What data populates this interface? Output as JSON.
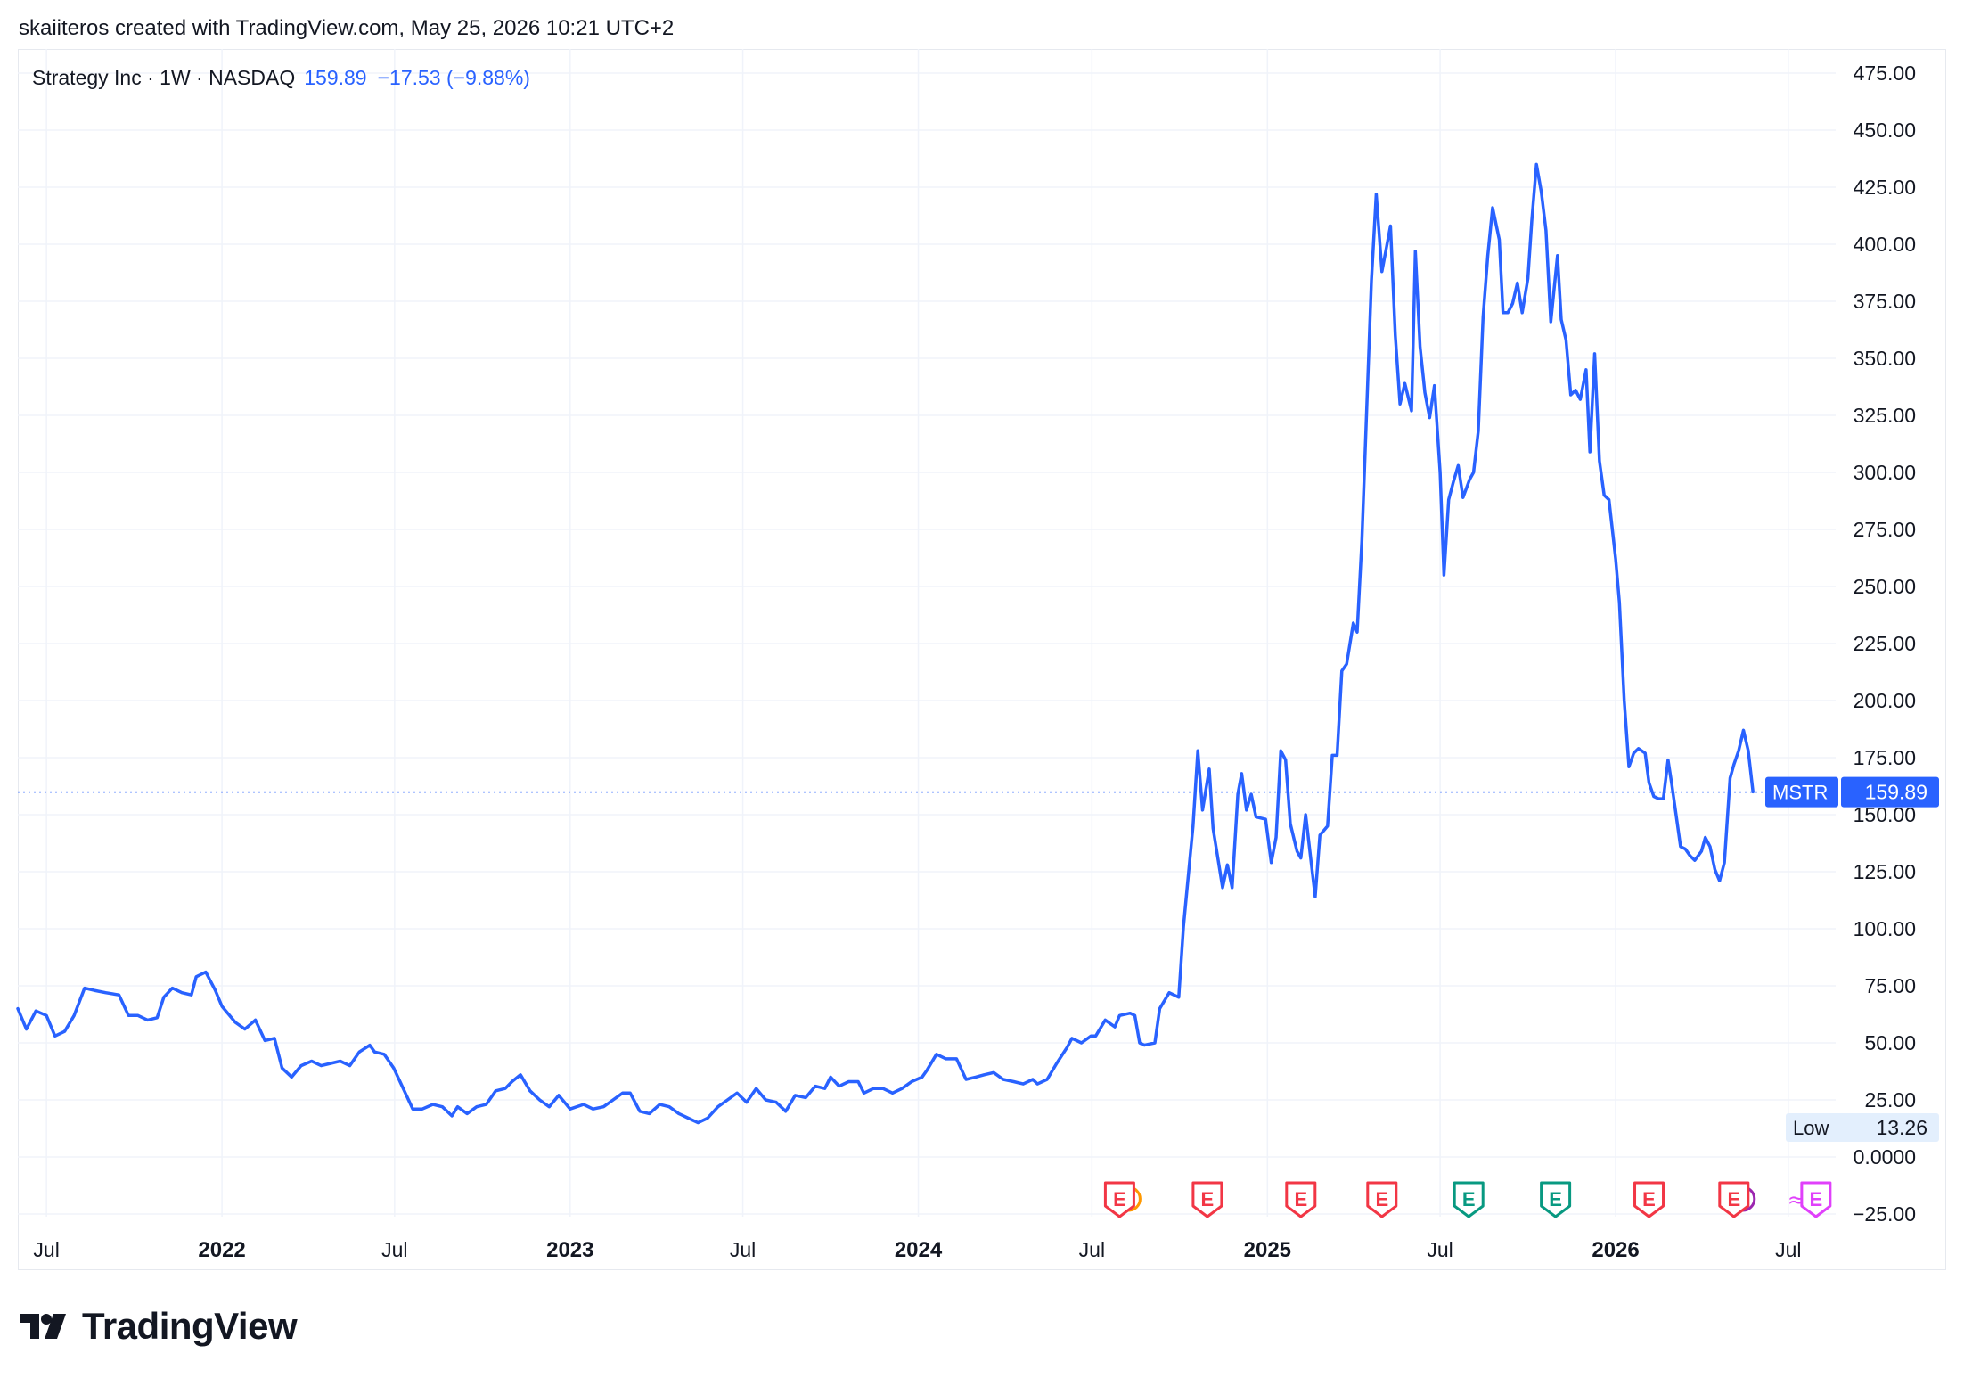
{
  "header": {
    "attribution": "skaiiteros created with TradingView.com, May 25, 2026 10:21 UTC+2"
  },
  "legend": {
    "symbol_text": "Strategy Inc · 1W · NASDAQ",
    "last_price": "159.89",
    "change": "−17.53 (−9.88%)"
  },
  "price_tag": {
    "ticker": "MSTR",
    "value": "159.89"
  },
  "low_tag": {
    "label": "Low",
    "value": "13.26"
  },
  "brand": {
    "name": "TradingView"
  },
  "colors": {
    "line": "#2962ff",
    "grid": "#f0f3fa",
    "earnings_red": "#f23645",
    "earnings_green": "#089981",
    "dividend_orange": "#ff9800",
    "split_magenta": "#e040fb"
  },
  "chart_data": {
    "type": "line",
    "title": "Strategy Inc · 1W · NASDAQ",
    "xlabel": "",
    "ylabel": "",
    "ylim": [
      -25,
      475
    ],
    "y_ticks": [
      "475.00",
      "450.00",
      "425.00",
      "400.00",
      "375.00",
      "350.00",
      "325.00",
      "300.00",
      "275.00",
      "250.00",
      "225.00",
      "200.00",
      "175.00",
      "150.00",
      "125.00",
      "100.00",
      "75.00",
      "50.00",
      "25.00",
      "0.0000",
      "−25.00"
    ],
    "x_ticks": [
      {
        "label": "Jul",
        "date": "2021-07-01",
        "bold": false
      },
      {
        "label": "2022",
        "date": "2022-01-01",
        "bold": true
      },
      {
        "label": "Jul",
        "date": "2022-07-01",
        "bold": false
      },
      {
        "label": "2023",
        "date": "2023-01-01",
        "bold": true
      },
      {
        "label": "Jul",
        "date": "2023-07-01",
        "bold": false
      },
      {
        "label": "2024",
        "date": "2024-01-01",
        "bold": true
      },
      {
        "label": "Jul",
        "date": "2024-07-01",
        "bold": false
      },
      {
        "label": "2025",
        "date": "2025-01-01",
        "bold": true
      },
      {
        "label": "Jul",
        "date": "2025-07-01",
        "bold": false
      },
      {
        "label": "2026",
        "date": "2026-01-01",
        "bold": true
      },
      {
        "label": "Jul",
        "date": "2026-07-01",
        "bold": false
      }
    ],
    "x_range": [
      "2021-06-01",
      "2026-08-01"
    ],
    "series": [
      {
        "color": "#2962ff",
        "points": [
          [
            "2021-06-01",
            65
          ],
          [
            "2021-06-10",
            56
          ],
          [
            "2021-06-20",
            64
          ],
          [
            "2021-07-01",
            62
          ],
          [
            "2021-07-10",
            53
          ],
          [
            "2021-07-20",
            55
          ],
          [
            "2021-07-30",
            62
          ],
          [
            "2021-08-10",
            74
          ],
          [
            "2021-08-20",
            73
          ],
          [
            "2021-09-01",
            72
          ],
          [
            "2021-09-15",
            71
          ],
          [
            "2021-09-25",
            62
          ],
          [
            "2021-10-05",
            62
          ],
          [
            "2021-10-15",
            60
          ],
          [
            "2021-10-25",
            61
          ],
          [
            "2021-11-01",
            70
          ],
          [
            "2021-11-10",
            74
          ],
          [
            "2021-11-20",
            72
          ],
          [
            "2021-11-30",
            71
          ],
          [
            "2021-12-05",
            79
          ],
          [
            "2021-12-15",
            81
          ],
          [
            "2021-12-25",
            73
          ],
          [
            "2022-01-01",
            66
          ],
          [
            "2022-01-15",
            59
          ],
          [
            "2022-01-25",
            56
          ],
          [
            "2022-02-05",
            60
          ],
          [
            "2022-02-15",
            51
          ],
          [
            "2022-02-25",
            52
          ],
          [
            "2022-03-05",
            39
          ],
          [
            "2022-03-15",
            35
          ],
          [
            "2022-03-25",
            40
          ],
          [
            "2022-04-05",
            42
          ],
          [
            "2022-04-15",
            40
          ],
          [
            "2022-04-25",
            41
          ],
          [
            "2022-05-05",
            42
          ],
          [
            "2022-05-15",
            40
          ],
          [
            "2022-05-25",
            46
          ],
          [
            "2022-06-05",
            49
          ],
          [
            "2022-06-10",
            46
          ],
          [
            "2022-06-20",
            45
          ],
          [
            "2022-06-30",
            39
          ],
          [
            "2022-07-10",
            30
          ],
          [
            "2022-07-20",
            21
          ],
          [
            "2022-07-30",
            21
          ],
          [
            "2022-08-10",
            23
          ],
          [
            "2022-08-20",
            22
          ],
          [
            "2022-08-30",
            18
          ],
          [
            "2022-09-05",
            22
          ],
          [
            "2022-09-15",
            19
          ],
          [
            "2022-09-25",
            22
          ],
          [
            "2022-10-05",
            23
          ],
          [
            "2022-10-15",
            29
          ],
          [
            "2022-10-25",
            30
          ],
          [
            "2022-11-01",
            33
          ],
          [
            "2022-11-10",
            36
          ],
          [
            "2022-11-20",
            29
          ],
          [
            "2022-11-30",
            25
          ],
          [
            "2022-12-10",
            22
          ],
          [
            "2022-12-20",
            27
          ],
          [
            "2022-12-30",
            22
          ],
          [
            "2023-01-01",
            21
          ],
          [
            "2023-01-15",
            23
          ],
          [
            "2023-01-25",
            21
          ],
          [
            "2023-02-05",
            22
          ],
          [
            "2023-02-15",
            25
          ],
          [
            "2023-02-25",
            28
          ],
          [
            "2023-03-05",
            28
          ],
          [
            "2023-03-15",
            20
          ],
          [
            "2023-03-25",
            19
          ],
          [
            "2023-04-05",
            23
          ],
          [
            "2023-04-15",
            22
          ],
          [
            "2023-04-25",
            19
          ],
          [
            "2023-05-05",
            17
          ],
          [
            "2023-05-15",
            15
          ],
          [
            "2023-05-25",
            17
          ],
          [
            "2023-06-05",
            22
          ],
          [
            "2023-06-15",
            25
          ],
          [
            "2023-06-25",
            28
          ],
          [
            "2023-07-05",
            24
          ],
          [
            "2023-07-15",
            30
          ],
          [
            "2023-07-25",
            25
          ],
          [
            "2023-08-05",
            24
          ],
          [
            "2023-08-15",
            20
          ],
          [
            "2023-08-25",
            27
          ],
          [
            "2023-09-05",
            26
          ],
          [
            "2023-09-15",
            31
          ],
          [
            "2023-09-25",
            30
          ],
          [
            "2023-10-01",
            35
          ],
          [
            "2023-10-10",
            31
          ],
          [
            "2023-10-20",
            33
          ],
          [
            "2023-10-30",
            33
          ],
          [
            "2023-11-05",
            28
          ],
          [
            "2023-11-15",
            30
          ],
          [
            "2023-11-25",
            30
          ],
          [
            "2023-12-05",
            28
          ],
          [
            "2023-12-15",
            30
          ],
          [
            "2023-12-25",
            33
          ],
          [
            "2024-01-05",
            35
          ],
          [
            "2024-01-10",
            38
          ],
          [
            "2024-01-20",
            45
          ],
          [
            "2024-01-30",
            43
          ],
          [
            "2024-02-10",
            43
          ],
          [
            "2024-02-20",
            34
          ],
          [
            "2024-03-01",
            35
          ],
          [
            "2024-03-10",
            36
          ],
          [
            "2024-03-20",
            37
          ],
          [
            "2024-03-30",
            34
          ],
          [
            "2024-04-10",
            33
          ],
          [
            "2024-04-20",
            32
          ],
          [
            "2024-04-30",
            34
          ],
          [
            "2024-05-05",
            32
          ],
          [
            "2024-05-15",
            34
          ],
          [
            "2024-05-25",
            41
          ],
          [
            "2024-06-05",
            48
          ],
          [
            "2024-06-10",
            52
          ],
          [
            "2024-06-20",
            50
          ],
          [
            "2024-06-30",
            53
          ],
          [
            "2024-07-05",
            53
          ],
          [
            "2024-07-15",
            60
          ],
          [
            "2024-07-25",
            57
          ],
          [
            "2024-07-30",
            62
          ],
          [
            "2024-08-10",
            63
          ],
          [
            "2024-08-15",
            62
          ],
          [
            "2024-08-20",
            50
          ],
          [
            "2024-08-25",
            49
          ],
          [
            "2024-09-05",
            50
          ],
          [
            "2024-09-10",
            65
          ],
          [
            "2024-09-20",
            72
          ],
          [
            "2024-09-30",
            70
          ],
          [
            "2024-10-05",
            101
          ],
          [
            "2024-10-15",
            145
          ],
          [
            "2024-10-20",
            178
          ],
          [
            "2024-10-25",
            152
          ],
          [
            "2024-11-01",
            170
          ],
          [
            "2024-11-05",
            144
          ],
          [
            "2024-11-15",
            118
          ],
          [
            "2024-11-20",
            128
          ],
          [
            "2024-11-25",
            118
          ],
          [
            "2024-12-01",
            159
          ],
          [
            "2024-12-05",
            168
          ],
          [
            "2024-12-10",
            152
          ],
          [
            "2024-12-15",
            159
          ],
          [
            "2024-12-20",
            149
          ],
          [
            "2024-12-30",
            148
          ],
          [
            "2025-01-05",
            129
          ],
          [
            "2025-01-10",
            140
          ],
          [
            "2025-01-15",
            178
          ],
          [
            "2025-01-20",
            174
          ],
          [
            "2025-01-25",
            146
          ],
          [
            "2025-02-01",
            134
          ],
          [
            "2025-02-05",
            131
          ],
          [
            "2025-02-10",
            150
          ],
          [
            "2025-02-20",
            114
          ],
          [
            "2025-02-25",
            141
          ],
          [
            "2025-03-05",
            145
          ],
          [
            "2025-03-10",
            176
          ],
          [
            "2025-03-15",
            176
          ],
          [
            "2025-03-20",
            213
          ],
          [
            "2025-03-25",
            216
          ],
          [
            "2025-04-01",
            234
          ],
          [
            "2025-04-05",
            230
          ],
          [
            "2025-04-10",
            270
          ],
          [
            "2025-04-20",
            384
          ],
          [
            "2025-04-25",
            422
          ],
          [
            "2025-05-01",
            388
          ],
          [
            "2025-05-10",
            408
          ],
          [
            "2025-05-15",
            360
          ],
          [
            "2025-05-20",
            330
          ],
          [
            "2025-05-25",
            339
          ],
          [
            "2025-06-01",
            327
          ],
          [
            "2025-06-05",
            397
          ],
          [
            "2025-06-10",
            355
          ],
          [
            "2025-06-15",
            335
          ],
          [
            "2025-06-20",
            324
          ],
          [
            "2025-06-25",
            338
          ],
          [
            "2025-07-01",
            300
          ],
          [
            "2025-07-05",
            255
          ],
          [
            "2025-07-10",
            288
          ],
          [
            "2025-07-15",
            296
          ],
          [
            "2025-07-20",
            303
          ],
          [
            "2025-07-25",
            289
          ],
          [
            "2025-08-01",
            297
          ],
          [
            "2025-08-05",
            300
          ],
          [
            "2025-08-10",
            318
          ],
          [
            "2025-08-15",
            368
          ],
          [
            "2025-08-20",
            395
          ],
          [
            "2025-08-25",
            416
          ],
          [
            "2025-09-01",
            402
          ],
          [
            "2025-09-05",
            370
          ],
          [
            "2025-09-10",
            370
          ],
          [
            "2025-09-15",
            374
          ],
          [
            "2025-09-20",
            383
          ],
          [
            "2025-09-25",
            370
          ],
          [
            "2025-10-01",
            385
          ],
          [
            "2025-10-05",
            410
          ],
          [
            "2025-10-10",
            435
          ],
          [
            "2025-10-15",
            423
          ],
          [
            "2025-10-20",
            406
          ],
          [
            "2025-10-25",
            366
          ],
          [
            "2025-11-01",
            395
          ],
          [
            "2025-11-05",
            367
          ],
          [
            "2025-11-10",
            358
          ],
          [
            "2025-11-15",
            334
          ],
          [
            "2025-11-20",
            336
          ],
          [
            "2025-11-25",
            332
          ],
          [
            "2025-12-01",
            345
          ],
          [
            "2025-12-05",
            309
          ],
          [
            "2025-12-10",
            352
          ],
          [
            "2025-12-15",
            305
          ],
          [
            "2025-12-20",
            290
          ],
          [
            "2025-12-25",
            288
          ],
          [
            "2026-01-01",
            262
          ],
          [
            "2026-01-05",
            243
          ],
          [
            "2026-01-10",
            200
          ],
          [
            "2026-01-15",
            171
          ],
          [
            "2026-01-20",
            177
          ],
          [
            "2026-01-25",
            179
          ],
          [
            "2026-02-01",
            177
          ],
          [
            "2026-02-05",
            164
          ],
          [
            "2026-02-10",
            158
          ],
          [
            "2026-02-15",
            157
          ],
          [
            "2026-02-20",
            157
          ],
          [
            "2026-02-25",
            174
          ],
          [
            "2026-03-01",
            163
          ],
          [
            "2026-03-05",
            151
          ],
          [
            "2026-03-10",
            136
          ],
          [
            "2026-03-15",
            135
          ],
          [
            "2026-03-20",
            132
          ],
          [
            "2026-03-25",
            130
          ],
          [
            "2026-04-01",
            134
          ],
          [
            "2026-04-05",
            140
          ],
          [
            "2026-04-10",
            136
          ],
          [
            "2026-04-15",
            126
          ],
          [
            "2026-04-20",
            121
          ],
          [
            "2026-04-25",
            129
          ],
          [
            "2026-05-01",
            166
          ],
          [
            "2026-05-05",
            172
          ],
          [
            "2026-05-10",
            178
          ],
          [
            "2026-05-15",
            187
          ],
          [
            "2026-05-20",
            178
          ],
          [
            "2026-05-25",
            160
          ]
        ]
      }
    ],
    "current_price": 159.89,
    "events": [
      {
        "type": "E",
        "color": "red",
        "date": "2024-07-30",
        "extra": "dividend"
      },
      {
        "type": "E",
        "color": "red",
        "date": "2024-10-30"
      },
      {
        "type": "E",
        "color": "red",
        "date": "2025-02-05"
      },
      {
        "type": "E",
        "color": "red",
        "date": "2025-05-01"
      },
      {
        "type": "E",
        "color": "green",
        "date": "2025-07-31"
      },
      {
        "type": "E",
        "color": "green",
        "date": "2025-10-30"
      },
      {
        "type": "E",
        "color": "red",
        "date": "2026-02-05"
      },
      {
        "type": "E",
        "color": "red",
        "date": "2026-05-05",
        "extra": "dividend"
      },
      {
        "type": "E",
        "color": "magenta",
        "date": "2026-07-30",
        "extra": "split"
      }
    ],
    "grid": true
  }
}
